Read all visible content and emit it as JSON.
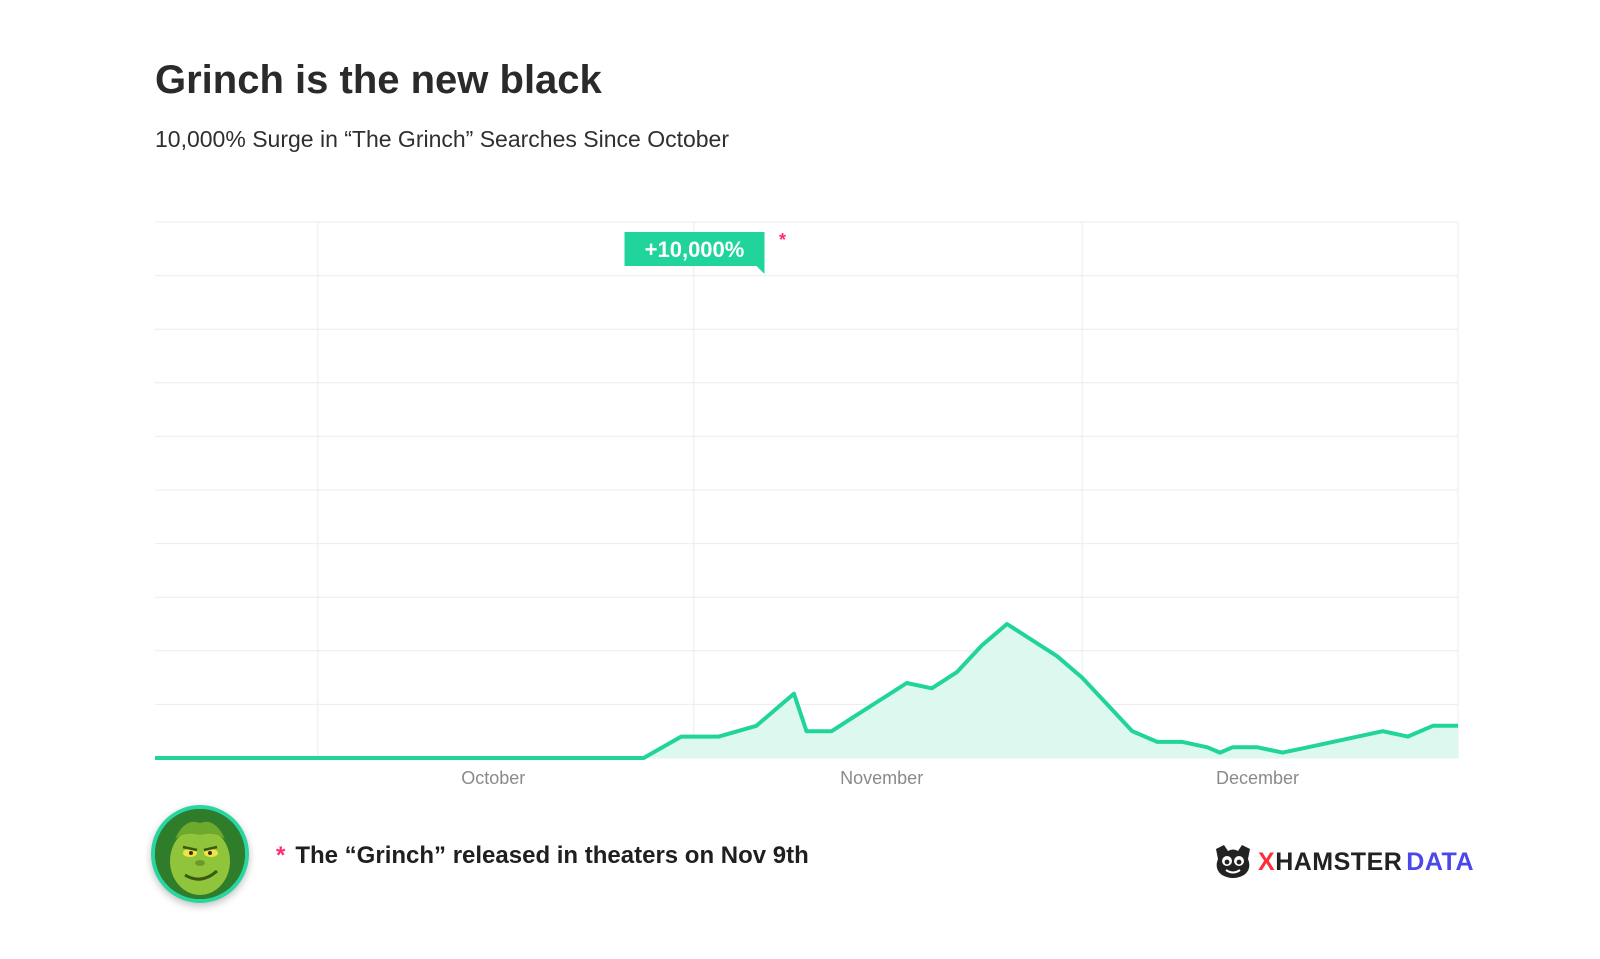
{
  "header": {
    "title": "Grinch is the new black",
    "subtitle": "10,000% Surge in “The Grinch” Searches Since October"
  },
  "chart_data": {
    "type": "area",
    "title": "Grinch is the new black",
    "subtitle": "10,000% Surge in “The Grinch” Searches Since October",
    "xlabel": "",
    "ylabel": "",
    "x_tick_labels": [
      "October",
      "November",
      "December"
    ],
    "x_range": [
      "2018-09-18",
      "2018-12-31"
    ],
    "ylim": [
      0,
      100
    ],
    "grid": true,
    "color": "#21d49b",
    "fill_color": "#ddf8ef",
    "annotation": {
      "label": "+10,000%",
      "marker": "*",
      "at_date": "2018-11-09"
    },
    "series": [
      {
        "dates": [
          "2018-09-18",
          "2018-09-21",
          "2018-09-24",
          "2018-09-27",
          "2018-09-30",
          "2018-10-03",
          "2018-10-06",
          "2018-10-09",
          "2018-10-12",
          "2018-10-15",
          "2018-10-18",
          "2018-10-21",
          "2018-10-24",
          "2018-10-27",
          "2018-10-30",
          "2018-11-02",
          "2018-11-05",
          "2018-11-06",
          "2018-11-07",
          "2018-11-08",
          "2018-11-09",
          "2018-11-11",
          "2018-11-13",
          "2018-11-15",
          "2018-11-17",
          "2018-11-19",
          "2018-11-21",
          "2018-11-23",
          "2018-11-25",
          "2018-11-27",
          "2018-11-29",
          "2018-12-01",
          "2018-12-03",
          "2018-12-05",
          "2018-12-07",
          "2018-12-09",
          "2018-12-11",
          "2018-12-12",
          "2018-12-13",
          "2018-12-15",
          "2018-12-17",
          "2018-12-19",
          "2018-12-21",
          "2018-12-23",
          "2018-12-25",
          "2018-12-27",
          "2018-12-29",
          "2018-12-31"
        ],
        "values": [
          0,
          0,
          0,
          0,
          0,
          0,
          0,
          0,
          0,
          0,
          0,
          0,
          0,
          0,
          4,
          4,
          6,
          8,
          10,
          12,
          5,
          5,
          8,
          11,
          14,
          13,
          16,
          21,
          25,
          22,
          19,
          15,
          10,
          5,
          3,
          3,
          2,
          1,
          2,
          2,
          1,
          2,
          3,
          4,
          5,
          4,
          6,
          6
        ]
      }
    ]
  },
  "footer": {
    "marker": "*",
    "note": "The “Grinch” released in theaters on Nov 9th",
    "brand_x": "X",
    "brand_hamster": "HAMSTER",
    "brand_data": "DATA"
  }
}
